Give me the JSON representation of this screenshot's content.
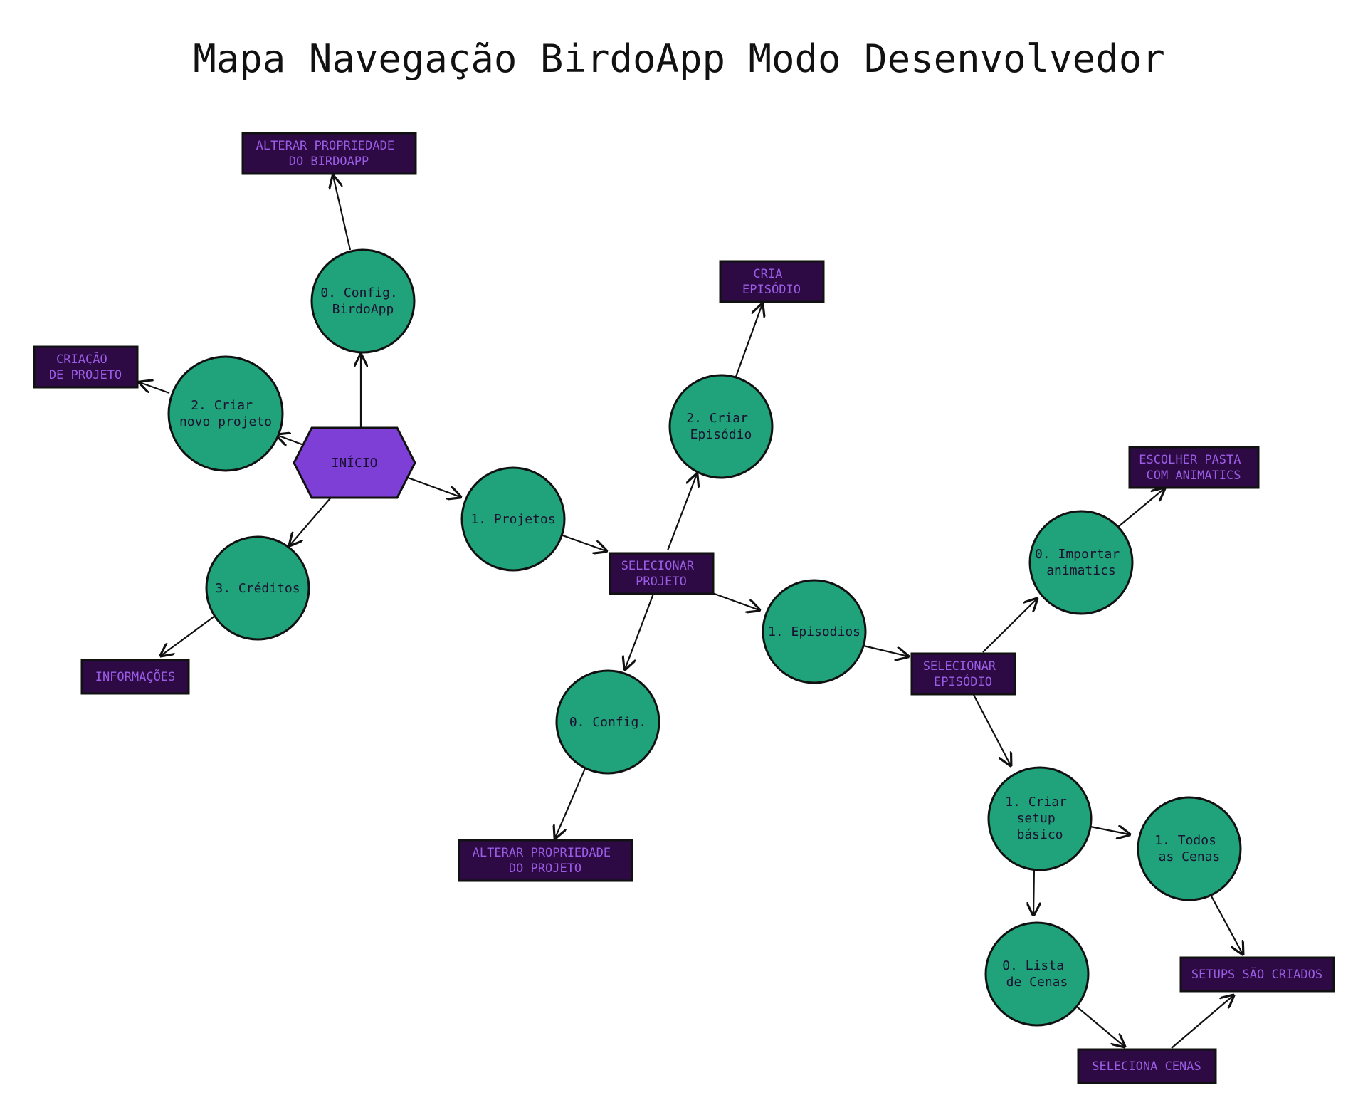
{
  "title": "Mapa Navegação BirdoApp Modo Desenvolvedor",
  "colors": {
    "circle_fill": "#20a27a",
    "hex_fill": "#7e3fd6",
    "box_fill": "#2d0a44",
    "box_text": "#9b5de5",
    "stroke": "#111111"
  },
  "nodes": {
    "inicio": [
      "INÍCIO"
    ],
    "config_birdoapp": [
      "0. Config.",
      "BirdoApp"
    ],
    "criar_projeto": [
      "2. Criar",
      "novo projeto"
    ],
    "creditos": [
      "3. Créditos"
    ],
    "projetos": [
      "1. Projetos"
    ],
    "criar_episodio": [
      "2. Criar",
      "Episódio"
    ],
    "config": [
      "0. Config."
    ],
    "episodios": [
      "1. Episodios"
    ],
    "importar_animatics": [
      "0. Importar",
      "animatics"
    ],
    "criar_setup": [
      "1. Criar",
      "setup",
      "básico"
    ],
    "todos_cenas": [
      "1. Todos",
      "as Cenas"
    ],
    "lista_cenas": [
      "0. Lista",
      "de Cenas"
    ]
  },
  "boxes": {
    "alterar_birdoapp": [
      "ALTERAR PROPRIEDADE",
      "DO BIRDOAPP"
    ],
    "criacao_projeto": [
      "CRIAÇÃO",
      "DE PROJETO"
    ],
    "informacoes": [
      "INFORMAÇÕES"
    ],
    "selecionar_projeto": [
      "SELECIONAR",
      "PROJETO"
    ],
    "cria_episodio": [
      "CRIA",
      "EPISÓDIO"
    ],
    "alterar_projeto": [
      "ALTERAR PROPRIEDADE",
      "DO PROJETO"
    ],
    "selecionar_episodio": [
      "SELECIONAR",
      "EPISÓDIO"
    ],
    "escolher_pasta": [
      "ESCOLHER PASTA",
      "COM ANIMATICS"
    ],
    "setups_criados": [
      "SETUPS SÃO CRIADOS"
    ],
    "seleciona_cenas": [
      "SELECIONA CENAS"
    ]
  }
}
